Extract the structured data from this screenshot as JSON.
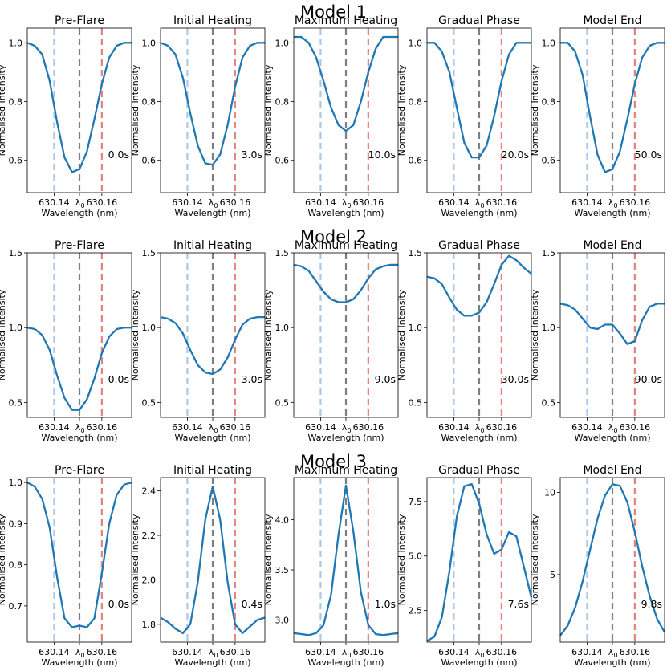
{
  "colors": {
    "line": "#1f77b4",
    "blue_guide": "#aec7e8",
    "center_guide": "#7f7f7f",
    "red_guide": "#e3827e",
    "frame": "#000000"
  },
  "axis_text": {
    "ylabel": "Normalised Intensity",
    "xlabel": "Wavelength (nm)",
    "xtick_left": "630.14",
    "xtick_center": "λ",
    "xtick_center_sub": "0",
    "xtick_right": "630.16"
  },
  "chart_data": [
    {
      "title": "Model 1",
      "panels": [
        {
          "type": "line",
          "title": "Pre-Flare",
          "time_label": "0.0s",
          "ylim": [
            0.49,
            1.05
          ],
          "yticks": [
            0.6,
            0.8,
            1.0
          ],
          "ytick_labels": [
            "0.6",
            "0.8",
            "1.0"
          ],
          "x": [
            -3.5,
            -3,
            -2.5,
            -2,
            -1.5,
            -1,
            -0.5,
            0,
            0.5,
            1,
            1.5,
            2,
            2.5,
            3,
            3.5
          ],
          "y": [
            1.0,
            0.99,
            0.96,
            0.87,
            0.73,
            0.61,
            0.56,
            0.57,
            0.63,
            0.74,
            0.86,
            0.95,
            0.99,
            1.0,
            1.0
          ]
        },
        {
          "type": "line",
          "title": "Initial Heating",
          "time_label": "3.0s",
          "ylim": [
            0.49,
            1.05
          ],
          "yticks": [
            0.6,
            0.8,
            1.0
          ],
          "ytick_labels": [
            "0.6",
            "0.8",
            "1.0"
          ],
          "x": [
            -3.5,
            -3,
            -2.5,
            -2,
            -1.5,
            -1,
            -0.5,
            0,
            0.5,
            1,
            1.5,
            2,
            2.5,
            3,
            3.5
          ],
          "y": [
            1.0,
            0.99,
            0.96,
            0.88,
            0.76,
            0.65,
            0.59,
            0.585,
            0.62,
            0.72,
            0.85,
            0.95,
            0.99,
            1.0,
            1.0
          ]
        },
        {
          "type": "line",
          "title": "Maximum Heating",
          "time_label": "10.0s",
          "ylim": [
            0.49,
            1.05
          ],
          "yticks": [
            0.6,
            0.8,
            1.0
          ],
          "ytick_labels": [
            "0.6",
            "0.8",
            "1.0"
          ],
          "x": [
            -3.5,
            -3,
            -2.5,
            -2,
            -1.5,
            -1,
            -0.5,
            0,
            0.5,
            1,
            1.5,
            2,
            2.5,
            3,
            3.5
          ],
          "y": [
            1.02,
            1.02,
            1.0,
            0.95,
            0.87,
            0.78,
            0.72,
            0.7,
            0.72,
            0.8,
            0.9,
            0.98,
            1.02,
            1.02,
            1.02
          ]
        },
        {
          "type": "line",
          "title": "Gradual Phase",
          "time_label": "20.0s",
          "ylim": [
            0.49,
            1.05
          ],
          "yticks": [
            0.6,
            0.8,
            1.0
          ],
          "ytick_labels": [
            "0.6",
            "0.8",
            "1.0"
          ],
          "x": [
            -3.5,
            -3,
            -2.5,
            -2,
            -1.5,
            -1,
            -0.5,
            0,
            0.5,
            1,
            1.5,
            2,
            2.5,
            3,
            3.5
          ],
          "y": [
            1.0,
            1.0,
            0.97,
            0.9,
            0.78,
            0.66,
            0.61,
            0.61,
            0.65,
            0.75,
            0.87,
            0.96,
            1.0,
            1.0,
            1.0
          ]
        },
        {
          "type": "line",
          "title": "Model End",
          "time_label": "50.0s",
          "ylim": [
            0.49,
            1.05
          ],
          "yticks": [
            0.6,
            0.8,
            1.0
          ],
          "ytick_labels": [
            "0.6",
            "0.8",
            "1.0"
          ],
          "x": [
            -3.5,
            -3,
            -2.5,
            -2,
            -1.5,
            -1,
            -0.5,
            0,
            0.5,
            1,
            1.5,
            2,
            2.5,
            3,
            3.5
          ],
          "y": [
            1.0,
            1.0,
            0.97,
            0.89,
            0.75,
            0.62,
            0.56,
            0.57,
            0.63,
            0.74,
            0.86,
            0.95,
            0.99,
            1.0,
            1.0
          ]
        }
      ]
    },
    {
      "title": "Model 2",
      "panels": [
        {
          "type": "line",
          "title": "Pre-Flare",
          "time_label": "0.0s",
          "ylim": [
            0.4,
            1.5
          ],
          "yticks": [
            0.5,
            1.0,
            1.5
          ],
          "ytick_labels": [
            "0.5",
            "1.0",
            "1.5"
          ],
          "x": [
            -3.5,
            -3,
            -2.5,
            -2,
            -1.5,
            -1,
            -0.5,
            0,
            0.5,
            1,
            1.5,
            2,
            2.5,
            3,
            3.5
          ],
          "y": [
            1.0,
            0.99,
            0.95,
            0.85,
            0.68,
            0.53,
            0.45,
            0.45,
            0.52,
            0.66,
            0.83,
            0.94,
            0.99,
            1.0,
            1.0
          ]
        },
        {
          "type": "line",
          "title": "Initial Heating",
          "time_label": "3.0s",
          "ylim": [
            0.4,
            1.5
          ],
          "yticks": [
            0.5,
            1.0,
            1.5
          ],
          "ytick_labels": [
            "0.5",
            "1.0",
            "1.5"
          ],
          "x": [
            -3.5,
            -3,
            -2.5,
            -2,
            -1.5,
            -1,
            -0.5,
            0,
            0.5,
            1,
            1.5,
            2,
            2.5,
            3,
            3.5
          ],
          "y": [
            1.07,
            1.06,
            1.03,
            0.96,
            0.85,
            0.75,
            0.7,
            0.69,
            0.72,
            0.8,
            0.92,
            1.02,
            1.06,
            1.07,
            1.07
          ]
        },
        {
          "type": "line",
          "title": "Maximum Heating",
          "time_label": "9.0s",
          "ylim": [
            0.4,
            1.5
          ],
          "yticks": [
            0.5,
            1.0,
            1.5
          ],
          "ytick_labels": [
            "0.5",
            "1.0",
            "1.5"
          ],
          "x": [
            -3.5,
            -3,
            -2.5,
            -2,
            -1.5,
            -1,
            -0.5,
            0,
            0.5,
            1,
            1.5,
            2,
            2.5,
            3,
            3.5
          ],
          "y": [
            1.42,
            1.41,
            1.38,
            1.31,
            1.24,
            1.19,
            1.17,
            1.17,
            1.19,
            1.25,
            1.33,
            1.39,
            1.41,
            1.42,
            1.42
          ]
        },
        {
          "type": "line",
          "title": "Gradual Phase",
          "time_label": "30.0s",
          "ylim": [
            0.4,
            1.5
          ],
          "yticks": [
            0.5,
            1.0,
            1.5
          ],
          "ytick_labels": [
            "0.5",
            "1.0",
            "1.5"
          ],
          "x": [
            -3.5,
            -3,
            -2.5,
            -2,
            -1.5,
            -1,
            -0.5,
            0,
            0.5,
            1,
            1.5,
            2,
            2.5,
            3,
            3.5
          ],
          "y": [
            1.34,
            1.33,
            1.29,
            1.2,
            1.12,
            1.08,
            1.08,
            1.1,
            1.17,
            1.29,
            1.42,
            1.48,
            1.45,
            1.4,
            1.36
          ]
        },
        {
          "type": "line",
          "title": "Model End",
          "time_label": "90.0s",
          "ylim": [
            0.4,
            1.5
          ],
          "yticks": [
            0.5,
            1.0,
            1.5
          ],
          "ytick_labels": [
            "0.5",
            "1.0",
            "1.5"
          ],
          "x": [
            -3.5,
            -3,
            -2.5,
            -2,
            -1.5,
            -1,
            -0.5,
            0,
            0.5,
            1,
            1.5,
            2,
            2.5,
            3,
            3.5
          ],
          "y": [
            1.16,
            1.15,
            1.12,
            1.06,
            1.0,
            0.99,
            1.02,
            1.02,
            0.96,
            0.89,
            0.91,
            1.05,
            1.14,
            1.16,
            1.16
          ]
        }
      ]
    },
    {
      "title": "Model 3",
      "panels": [
        {
          "type": "line",
          "title": "Pre-Flare",
          "time_label": "0.0s",
          "ylim": [
            0.612,
            1.012
          ],
          "yticks": [
            0.7,
            0.8,
            0.9,
            1.0
          ],
          "ytick_labels": [
            "0.7",
            "0.8",
            "0.9",
            "1.0"
          ],
          "x": [
            -3.5,
            -3,
            -2.5,
            -2,
            -1.5,
            -1,
            -0.5,
            0,
            0.5,
            1,
            1.5,
            2,
            2.5,
            3,
            3.5
          ],
          "y": [
            1.0,
            0.99,
            0.96,
            0.89,
            0.77,
            0.67,
            0.648,
            0.652,
            0.648,
            0.67,
            0.78,
            0.9,
            0.97,
            0.995,
            1.0
          ]
        },
        {
          "type": "line",
          "title": "Initial Heating",
          "time_label": "0.4s",
          "ylim": [
            1.72,
            2.46
          ],
          "yticks": [
            1.8,
            2.0,
            2.2,
            2.4
          ],
          "ytick_labels": [
            "1.8",
            "2.0",
            "2.2",
            "2.4"
          ],
          "x": [
            -3.5,
            -3,
            -2.5,
            -2,
            -1.5,
            -1,
            -0.5,
            0,
            0.5,
            1,
            1.5,
            2,
            2.5,
            3,
            3.5
          ],
          "y": [
            1.83,
            1.81,
            1.78,
            1.76,
            1.8,
            1.99,
            2.27,
            2.42,
            2.27,
            1.99,
            1.8,
            1.76,
            1.79,
            1.82,
            1.83
          ]
        },
        {
          "type": "line",
          "title": "Maximum Heating",
          "time_label": "1.0s",
          "ylim": [
            2.78,
            4.42
          ],
          "yticks": [
            3.0,
            3.5,
            4.0
          ],
          "ytick_labels": [
            "3.0",
            "3.5",
            "4.0"
          ],
          "x": [
            -3.5,
            -3,
            -2.5,
            -2,
            -1.5,
            -1,
            -0.5,
            0,
            0.5,
            1,
            1.5,
            2,
            2.5,
            3,
            3.5
          ],
          "y": [
            2.87,
            2.86,
            2.85,
            2.87,
            2.95,
            3.25,
            3.85,
            4.34,
            3.88,
            3.28,
            2.95,
            2.86,
            2.85,
            2.86,
            2.87
          ]
        },
        {
          "type": "line",
          "title": "Gradual Phase",
          "time_label": "7.6s",
          "ylim": [
            1.05,
            8.6
          ],
          "yticks": [
            2.5,
            5.0,
            7.5
          ],
          "ytick_labels": [
            "2.5",
            "5.0",
            "7.5"
          ],
          "x": [
            -3.5,
            -3,
            -2.5,
            -2,
            -1.5,
            -1,
            -0.5,
            0,
            0.5,
            1,
            1.5,
            2,
            2.5,
            3,
            3.5
          ],
          "y": [
            1.1,
            1.3,
            2.2,
            4.3,
            6.8,
            8.2,
            8.3,
            7.4,
            6.0,
            5.1,
            5.3,
            6.1,
            5.9,
            4.5,
            3.1
          ]
        },
        {
          "type": "line",
          "title": "Model End",
          "time_label": "9.8s",
          "ylim": [
            0.9,
            10.9
          ],
          "yticks": [
            5,
            10
          ],
          "ytick_labels": [
            "5",
            "10"
          ],
          "x": [
            -3.5,
            -3,
            -2.5,
            -2,
            -1.5,
            -1,
            -0.5,
            0,
            0.5,
            1,
            1.5,
            2,
            2.5,
            3,
            3.5
          ],
          "y": [
            1.3,
            1.9,
            3.0,
            4.6,
            6.5,
            8.4,
            9.8,
            10.5,
            10.4,
            9.4,
            7.6,
            5.5,
            3.7,
            2.3,
            1.5
          ]
        }
      ]
    }
  ]
}
